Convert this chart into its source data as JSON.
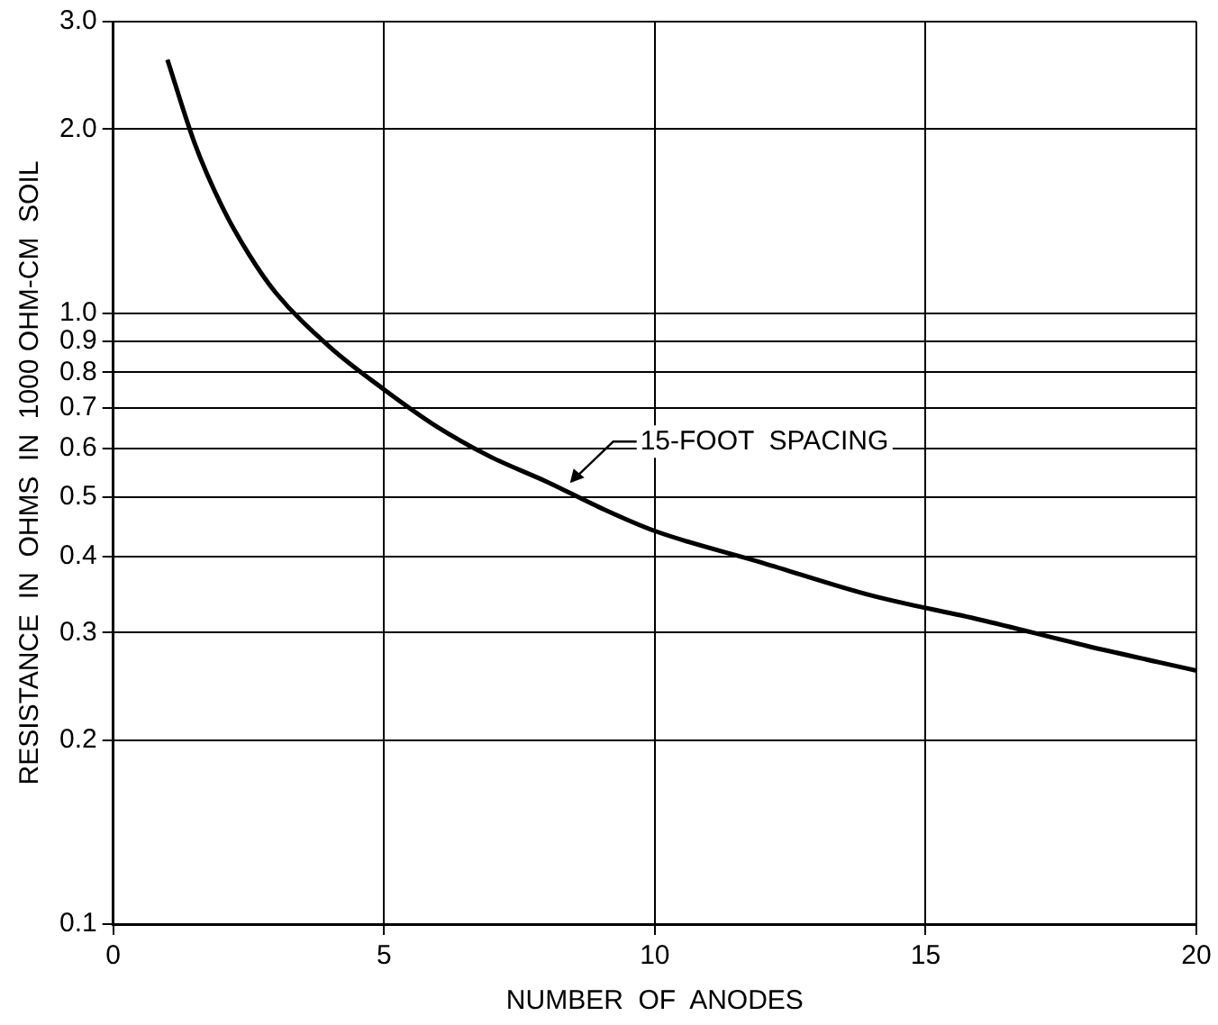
{
  "chart_data": {
    "type": "line",
    "xlabel": "NUMBER  OF  ANODES",
    "ylabel": "RESISTANCE  IN  OHMS  IN  1000 OHM-CM  SOIL",
    "series": [
      {
        "color": "#000000",
        "x": [
          1,
          1.5,
          2,
          2.5,
          3,
          4,
          5,
          6,
          7,
          8,
          9,
          10,
          12,
          14,
          16,
          18,
          20
        ],
        "values": [
          2.6,
          1.9,
          1.5,
          1.25,
          1.08,
          0.88,
          0.75,
          0.65,
          0.58,
          0.53,
          0.48,
          0.44,
          0.39,
          0.345,
          0.315,
          0.285,
          0.26
        ]
      }
    ],
    "xlim": [
      0,
      20
    ],
    "xticks": [
      0,
      5,
      10,
      15,
      20
    ],
    "ylim": [
      0.1,
      3.0
    ],
    "yticks": [
      0.1,
      0.2,
      0.3,
      0.4,
      0.5,
      0.6,
      0.7,
      0.8,
      0.9,
      {
        "value": 1.0,
        "label": "1.0"
      },
      {
        "value": 2.0,
        "label": "2.0"
      },
      {
        "value": 3.0,
        "label": "3.0"
      }
    ],
    "log": "y",
    "grid": true,
    "legend": false,
    "marker": "none",
    "line_style": "solid",
    "annotations": [
      {
        "text": "15-FOOT  SPACING",
        "x": 8.4,
        "y": 0.52
      }
    ]
  }
}
